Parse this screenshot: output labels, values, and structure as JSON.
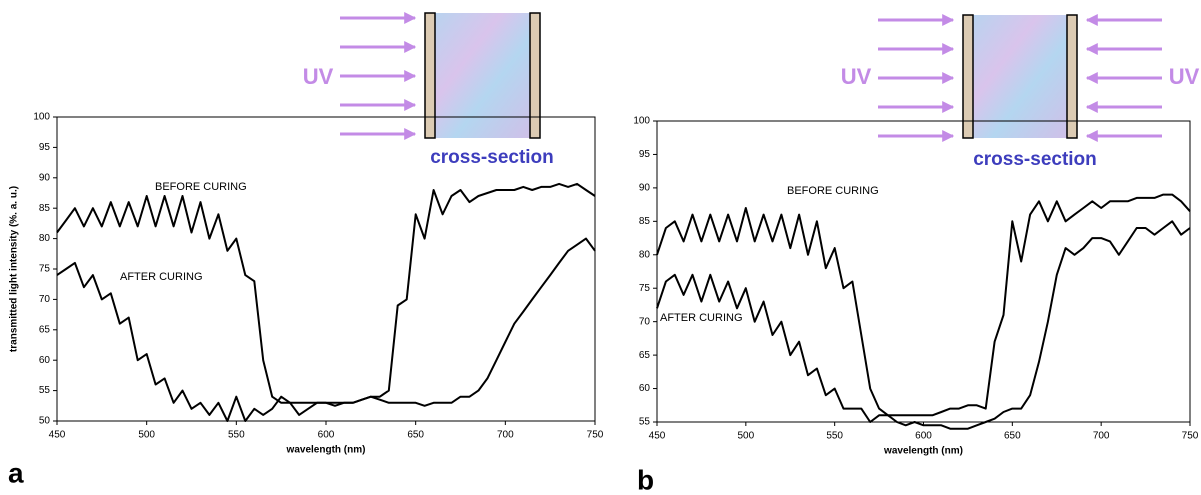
{
  "chart_data": [
    {
      "type": "line",
      "panel_label": "a",
      "uv_labels": [
        "UV"
      ],
      "inset_caption": "cross-section",
      "xlabel": "wavelength (nm)",
      "ylabel": "transmitted light intensity (%. a. u.)",
      "xlim": [
        450,
        750
      ],
      "ylim": [
        50,
        100
      ],
      "xticks": [
        450,
        500,
        550,
        600,
        650,
        700,
        750
      ],
      "yticks": [
        50,
        55,
        60,
        65,
        70,
        75,
        80,
        85,
        90,
        95,
        100
      ],
      "x": [
        450,
        455,
        460,
        465,
        470,
        475,
        480,
        485,
        490,
        495,
        500,
        505,
        510,
        515,
        520,
        525,
        530,
        535,
        540,
        545,
        550,
        555,
        560,
        565,
        570,
        575,
        580,
        585,
        590,
        595,
        600,
        605,
        610,
        615,
        620,
        625,
        630,
        635,
        640,
        645,
        650,
        655,
        660,
        665,
        670,
        675,
        680,
        685,
        690,
        695,
        700,
        705,
        710,
        715,
        720,
        725,
        730,
        735,
        740,
        745,
        750
      ],
      "series": [
        {
          "name": "BEFORE CURING",
          "color": "#000000",
          "values": [
            81,
            83,
            85,
            82,
            85,
            82,
            86,
            82,
            86,
            82,
            87,
            82,
            87,
            82,
            87,
            81,
            86,
            80,
            84,
            78,
            80,
            74,
            73,
            60,
            54,
            53,
            53,
            53,
            53,
            53,
            53,
            53,
            53,
            53,
            53.5,
            54,
            54,
            55,
            69,
            70,
            84,
            80,
            88,
            84,
            87,
            88,
            86,
            87,
            87.5,
            88,
            88,
            88,
            88.5,
            88,
            88.5,
            88.5,
            89,
            88.5,
            89,
            88,
            87
          ]
        },
        {
          "name": "AFTER CURING",
          "color": "#000000",
          "values": [
            74,
            75,
            76,
            72,
            74,
            70,
            71,
            66,
            67,
            60,
            61,
            56,
            57,
            53,
            55,
            52,
            53,
            51,
            53,
            50,
            54,
            50,
            52,
            51,
            52,
            54,
            53,
            51,
            52,
            53,
            53,
            52.5,
            53,
            53,
            53.5,
            54,
            53.5,
            53,
            53,
            53,
            53,
            52.5,
            53,
            53,
            53,
            54,
            54,
            55,
            57,
            60,
            63,
            66,
            68,
            70,
            72,
            74,
            76,
            78,
            79,
            80,
            78
          ]
        }
      ]
    },
    {
      "type": "line",
      "panel_label": "b",
      "uv_labels": [
        "UV",
        "UV"
      ],
      "inset_caption": "cross-section",
      "xlabel": "wavelength (nm)",
      "xlim": [
        450,
        750
      ],
      "ylim": [
        55,
        100
      ],
      "xticks": [
        450,
        500,
        550,
        600,
        650,
        700,
        750
      ],
      "yticks": [
        55,
        60,
        65,
        70,
        75,
        80,
        85,
        90,
        95,
        100
      ],
      "x": [
        450,
        455,
        460,
        465,
        470,
        475,
        480,
        485,
        490,
        495,
        500,
        505,
        510,
        515,
        520,
        525,
        530,
        535,
        540,
        545,
        550,
        555,
        560,
        565,
        570,
        575,
        580,
        585,
        590,
        595,
        600,
        605,
        610,
        615,
        620,
        625,
        630,
        635,
        640,
        645,
        650,
        655,
        660,
        665,
        670,
        675,
        680,
        685,
        690,
        695,
        700,
        705,
        710,
        715,
        720,
        725,
        730,
        735,
        740,
        745,
        750
      ],
      "series": [
        {
          "name": "BEFORE CURING",
          "color": "#000000",
          "values": [
            80,
            84,
            85,
            82,
            86,
            82,
            86,
            82,
            86,
            82,
            87,
            82,
            86,
            82,
            86,
            81,
            86,
            80,
            85,
            78,
            81,
            75,
            76,
            68,
            60,
            57,
            56,
            56,
            56,
            56,
            56,
            56,
            56.5,
            57,
            57,
            57.5,
            57.5,
            57,
            67,
            71,
            85,
            79,
            86,
            88,
            85,
            88,
            85,
            86,
            87,
            88,
            87,
            88,
            88,
            88,
            88.5,
            88.5,
            88.5,
            89,
            89,
            88,
            86.5
          ]
        },
        {
          "name": "AFTER CURING",
          "color": "#000000",
          "values": [
            72,
            76,
            77,
            74,
            77,
            73,
            77,
            73,
            76,
            72,
            75,
            70,
            73,
            68,
            70,
            65,
            67,
            62,
            63,
            59,
            60,
            57,
            57,
            57,
            55,
            56,
            56,
            55,
            54.5,
            55,
            54.5,
            54.5,
            54.5,
            54,
            54,
            54,
            54.5,
            55,
            55.5,
            56.5,
            57,
            57,
            59,
            64,
            70,
            77,
            81,
            80,
            81,
            82.5,
            82.5,
            82,
            80,
            82,
            84,
            84,
            83,
            84,
            85,
            83,
            84
          ]
        }
      ]
    }
  ]
}
